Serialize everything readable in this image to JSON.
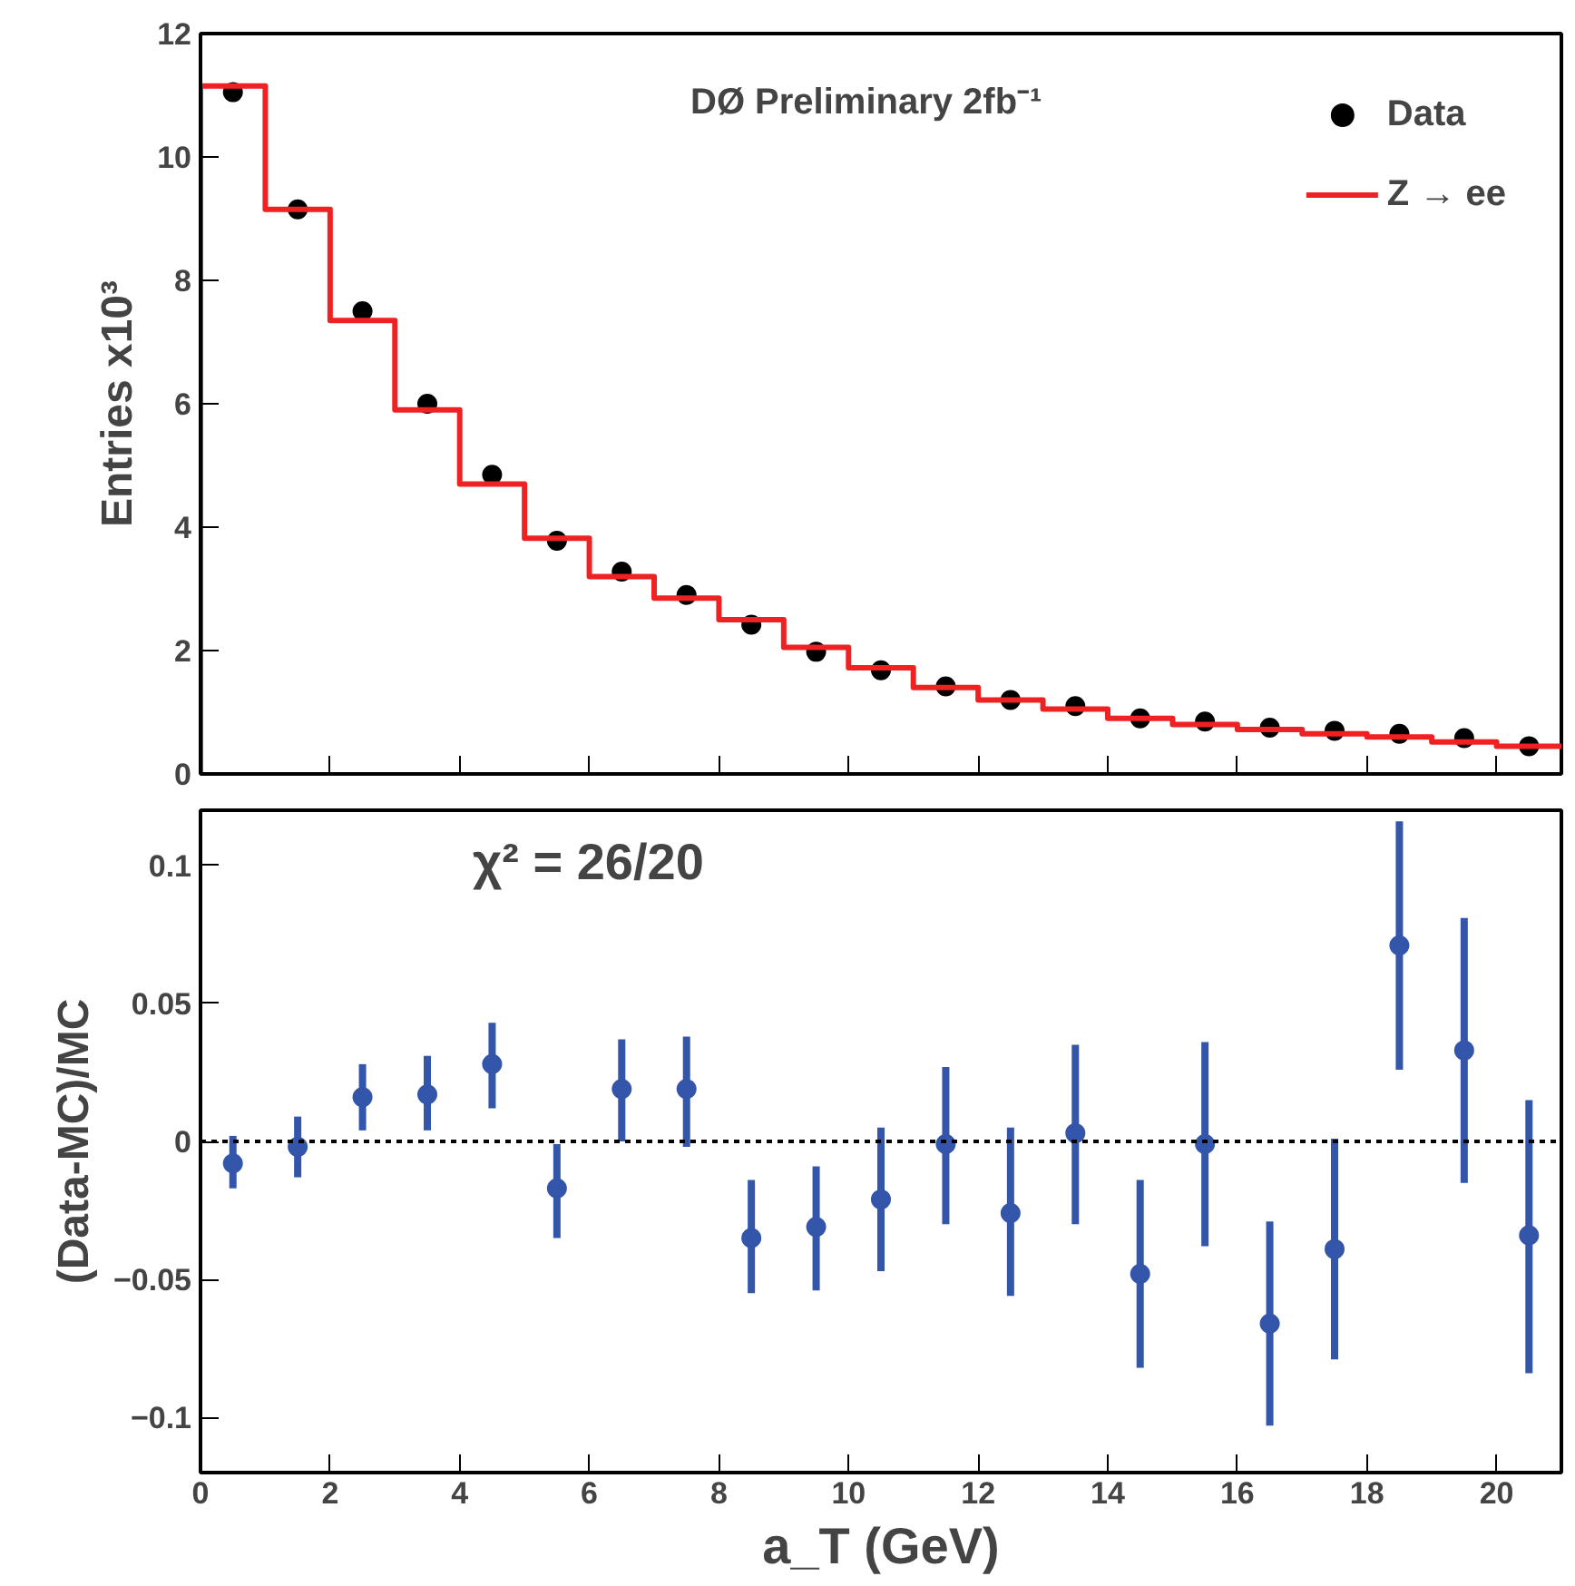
{
  "chart_data": [
    {
      "type": "line",
      "ylabel": "Entries x10³",
      "xlim": [
        0,
        21
      ],
      "xticks": [
        0,
        2,
        4,
        6,
        8,
        10,
        12,
        14,
        16,
        18,
        20
      ],
      "ylim": [
        0,
        12
      ],
      "yticks": [
        0,
        2,
        4,
        6,
        8,
        10,
        12
      ],
      "tick_labels": "y",
      "grid": false,
      "legend": "top right",
      "annotations": [
        "DØ Preliminary 2fb⁻¹"
      ],
      "series": [
        {
          "name": "Data",
          "type": "scatter",
          "marker": "circle",
          "color": "#000000",
          "x": [
            0.5,
            1.5,
            2.5,
            3.5,
            4.5,
            5.5,
            6.5,
            7.5,
            8.5,
            9.5,
            10.5,
            11.5,
            12.5,
            13.5,
            14.5,
            15.5,
            16.5,
            17.5,
            18.5,
            19.5,
            20.5
          ],
          "values": [
            11.05,
            9.15,
            7.5,
            6.0,
            4.85,
            3.78,
            3.28,
            2.9,
            2.42,
            1.98,
            1.68,
            1.42,
            1.2,
            1.1,
            0.9,
            0.85,
            0.75,
            0.7,
            0.65,
            0.58,
            0.45
          ]
        },
        {
          "name": "Z → ee",
          "type": "histogram",
          "color": "#ee2222",
          "bins": [
            0,
            1,
            2,
            3,
            4,
            5,
            6,
            7,
            8,
            9,
            10,
            11,
            12,
            13,
            14,
            15,
            16,
            17,
            18,
            19,
            20,
            21
          ],
          "values": [
            11.15,
            9.15,
            7.35,
            5.9,
            4.7,
            3.82,
            3.2,
            2.85,
            2.5,
            2.05,
            1.72,
            1.4,
            1.2,
            1.05,
            0.9,
            0.8,
            0.72,
            0.65,
            0.6,
            0.52,
            0.45
          ]
        }
      ]
    },
    {
      "type": "scatter",
      "xlabel": "a_T (GeV)",
      "ylabel": "(Data-MC)/MC",
      "xlim": [
        0,
        21
      ],
      "xticks": [
        0,
        2,
        4,
        6,
        8,
        10,
        12,
        14,
        16,
        18,
        20
      ],
      "ylim": [
        -0.12,
        0.12
      ],
      "yticks": [
        -0.1,
        -0.05,
        0,
        0.05,
        0.1
      ],
      "grid": false,
      "marker": "circle",
      "annotations": [
        "χ² = 26/20"
      ],
      "ref_lines": [
        {
          "axis": "y",
          "value": 0,
          "color": "#000000",
          "line_style": "dotted"
        }
      ],
      "series": [
        {
          "color": "#3355aa",
          "x": [
            0.5,
            1.5,
            2.5,
            3.5,
            4.5,
            5.5,
            6.5,
            7.5,
            8.5,
            9.5,
            10.5,
            11.5,
            12.5,
            13.5,
            14.5,
            15.5,
            16.5,
            17.5,
            18.5,
            19.5,
            20.5
          ],
          "values": [
            -0.008,
            -0.002,
            0.016,
            0.017,
            0.028,
            -0.017,
            0.019,
            0.019,
            -0.035,
            -0.031,
            -0.021,
            -0.001,
            -0.026,
            0.003,
            -0.048,
            -0.001,
            -0.066,
            -0.039,
            0.071,
            0.033,
            -0.034
          ],
          "errors": [
            [
              -0.017,
              0.002
            ],
            [
              -0.013,
              0.009
            ],
            [
              0.004,
              0.028
            ],
            [
              0.004,
              0.031
            ],
            [
              0.012,
              0.043
            ],
            [
              -0.035,
              -0.001
            ],
            [
              0.0,
              0.037
            ],
            [
              -0.002,
              0.038
            ],
            [
              -0.055,
              -0.014
            ],
            [
              -0.054,
              -0.009
            ],
            [
              -0.047,
              0.005
            ],
            [
              -0.03,
              0.027
            ],
            [
              -0.056,
              0.005
            ],
            [
              -0.03,
              0.035
            ],
            [
              -0.082,
              -0.014
            ],
            [
              -0.038,
              0.036
            ],
            [
              -0.103,
              -0.029
            ],
            [
              -0.079,
              0.001
            ],
            [
              0.026,
              0.116
            ],
            [
              -0.015,
              0.081
            ],
            [
              -0.084,
              0.015
            ]
          ]
        }
      ]
    }
  ]
}
